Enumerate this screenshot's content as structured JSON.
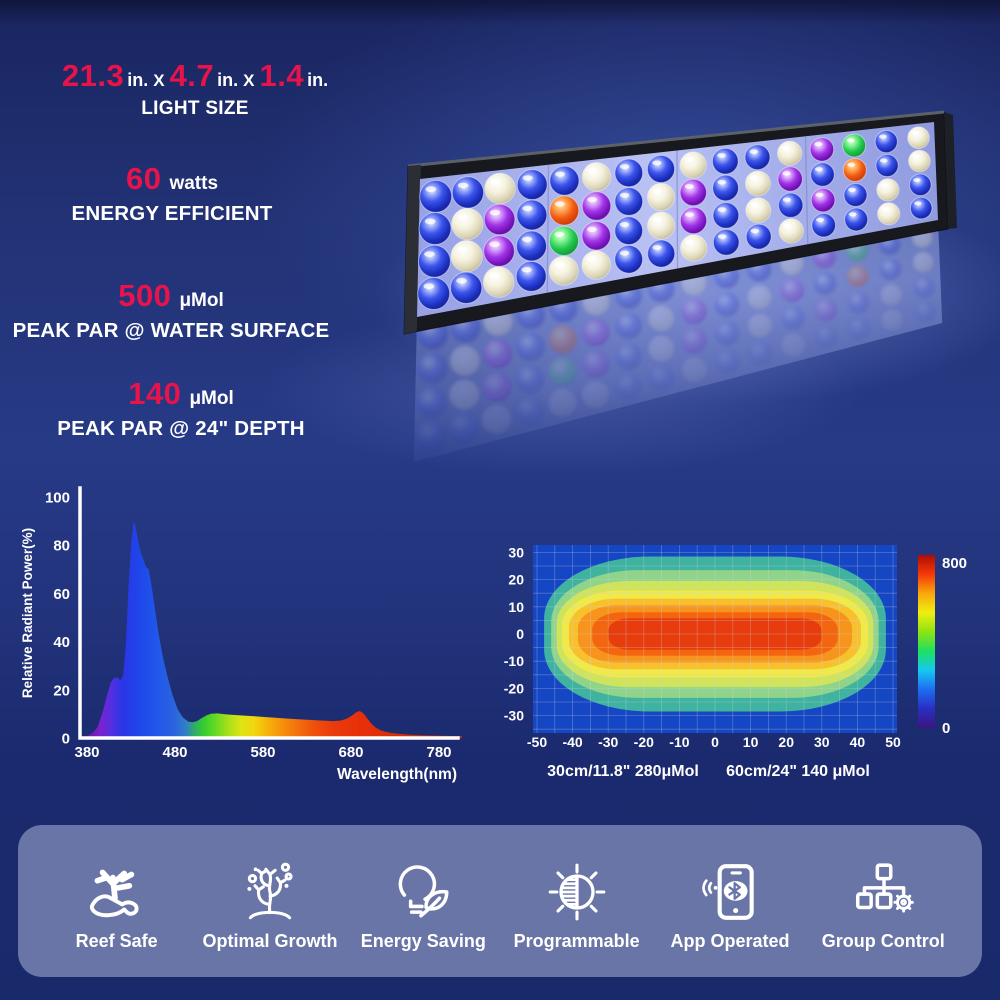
{
  "specs": {
    "size": {
      "values": [
        "21.3",
        "4.7",
        "1.4"
      ],
      "unit": "in.",
      "separator": "X",
      "caption": "LIGHT SIZE"
    },
    "power": {
      "value": "60",
      "unit": "watts",
      "caption": "ENERGY EFFICIENT"
    },
    "par_surface": {
      "value": "500",
      "unit": "μMol",
      "caption": "PEAK PAR @ WATER SURFACE"
    },
    "par_depth": {
      "value": "140",
      "unit": "μMol",
      "caption": "PEAK PAR @ 24\" DEPTH"
    }
  },
  "colors": {
    "accent_red": "#e8134b",
    "text": "#ffffff",
    "feature_panel": "#6a75a7",
    "background_blue": "#22337c",
    "heatmap_plot_blue": "#1546c4"
  },
  "chart_data": [
    {
      "id": "spectrum",
      "type": "area",
      "title": "",
      "xlabel": "Wavelength(nm)",
      "ylabel": "Relative Radiant Power(%)",
      "xlim": [
        365,
        806
      ],
      "ylim": [
        0,
        100
      ],
      "xticks": [
        380,
        480,
        580,
        680,
        780
      ],
      "yticks": [
        0,
        20,
        40,
        60,
        80,
        100
      ],
      "grid": false,
      "points": [
        [
          380,
          1
        ],
        [
          386,
          2
        ],
        [
          392,
          4.5
        ],
        [
          398,
          11
        ],
        [
          403,
          18
        ],
        [
          407,
          23
        ],
        [
          411,
          25
        ],
        [
          415,
          25
        ],
        [
          418,
          24
        ],
        [
          421,
          26
        ],
        [
          424,
          38
        ],
        [
          427,
          62
        ],
        [
          430,
          80
        ],
        [
          433,
          90
        ],
        [
          435,
          88
        ],
        [
          438,
          82
        ],
        [
          441,
          77
        ],
        [
          444,
          74
        ],
        [
          447,
          71
        ],
        [
          450,
          70
        ],
        [
          453,
          64
        ],
        [
          457,
          54
        ],
        [
          461,
          44
        ],
        [
          466,
          34
        ],
        [
          471,
          26
        ],
        [
          477,
          18
        ],
        [
          483,
          12
        ],
        [
          489,
          8.5
        ],
        [
          495,
          6.8
        ],
        [
          500,
          6.5
        ],
        [
          505,
          7
        ],
        [
          510,
          8.2
        ],
        [
          516,
          9.4
        ],
        [
          521,
          10.1
        ],
        [
          528,
          10.2
        ],
        [
          538,
          9.8
        ],
        [
          552,
          9.4
        ],
        [
          570,
          9
        ],
        [
          590,
          8.5
        ],
        [
          610,
          8
        ],
        [
          630,
          7.6
        ],
        [
          648,
          7.2
        ],
        [
          660,
          7
        ],
        [
          668,
          7.2
        ],
        [
          675,
          8
        ],
        [
          681,
          9.3
        ],
        [
          686,
          10.7
        ],
        [
          690,
          11.2
        ],
        [
          694,
          10.3
        ],
        [
          698,
          8.4
        ],
        [
          703,
          6
        ],
        [
          708,
          4.3
        ],
        [
          714,
          3.1
        ],
        [
          724,
          2.2
        ],
        [
          738,
          1.6
        ],
        [
          755,
          1.2
        ],
        [
          775,
          1
        ],
        [
          795,
          0.85
        ],
        [
          806,
          0.8
        ]
      ],
      "gradient_stops": [
        [
          380,
          "#6d14a4"
        ],
        [
          395,
          "#7a22cc"
        ],
        [
          408,
          "#5430e0"
        ],
        [
          420,
          "#2b35e6"
        ],
        [
          440,
          "#1f46ea"
        ],
        [
          460,
          "#2158ea"
        ],
        [
          478,
          "#2a62e0"
        ],
        [
          492,
          "#2f7fc8"
        ],
        [
          503,
          "#2fae62"
        ],
        [
          512,
          "#33cc33"
        ],
        [
          525,
          "#62d824"
        ],
        [
          540,
          "#a6e01a"
        ],
        [
          555,
          "#dde414"
        ],
        [
          570,
          "#f2d60f"
        ],
        [
          585,
          "#f6b30b"
        ],
        [
          600,
          "#f6930a"
        ],
        [
          618,
          "#f4720c"
        ],
        [
          638,
          "#ef500c"
        ],
        [
          660,
          "#ea3b0b"
        ],
        [
          690,
          "#e7300a"
        ],
        [
          730,
          "#d92c08"
        ],
        [
          806,
          "#c92806"
        ]
      ]
    },
    {
      "id": "par-distribution",
      "type": "heatmap",
      "xticks": [
        -50,
        -40,
        -30,
        -20,
        -10,
        0,
        10,
        20,
        30,
        40,
        50
      ],
      "yticks": [
        30,
        20,
        10,
        0,
        -10,
        -20,
        -30
      ],
      "grid": true,
      "grid_step": 5,
      "plot_bg": "#1546c4",
      "bands": [
        {
          "color": "#3fb3a0",
          "a": 48,
          "b": 28.5
        },
        {
          "color": "#8fd48a",
          "a": 46,
          "b": 23.5
        },
        {
          "color": "#cfe45c",
          "a": 44.5,
          "b": 19.5
        },
        {
          "color": "#f0e94a",
          "a": 43,
          "b": 16
        },
        {
          "color": "#f8c02c",
          "a": 41,
          "b": 13
        },
        {
          "color": "#f7941d",
          "a": 38.5,
          "b": 10.5
        },
        {
          "color": "#f3660f",
          "a": 34.5,
          "b": 8
        },
        {
          "color": "#e73c0c",
          "a": 30,
          "b": 5.8
        }
      ],
      "colorbar": {
        "min": 0,
        "max": 800,
        "max_label": "800",
        "min_label": "0",
        "stops": [
          "#3c1581",
          "#2a2dc0",
          "#1e6cf2",
          "#15c8f0",
          "#1fe060",
          "#8ee312",
          "#f0ee10",
          "#f9a70b",
          "#f43908",
          "#ad0d05"
        ]
      },
      "captions": [
        {
          "distance": "30cm/11.8\"",
          "par": "280μMol"
        },
        {
          "distance": "60cm/24\"",
          "par": "140 μMol"
        }
      ]
    }
  ],
  "product_visual": {
    "kind": "aquarium-led-light-bar-photo",
    "led_pattern": [
      "BBWBBWBBWBBWPGBW",
      "BWPBRPBWPBWPBRBW",
      "BWPBGPBWPBWBPBWB",
      "BBWBWWBBWBBWBBWB"
    ],
    "led_colors": {
      "B": "blue",
      "W": "white",
      "P": "purple",
      "R": "red",
      "G": "green"
    },
    "sections": 4
  },
  "features": [
    {
      "label": "Reef Safe",
      "icon": "hand-coral-icon"
    },
    {
      "label": "Optimal Growth",
      "icon": "coral-growth-icon"
    },
    {
      "label": "Energy Saving",
      "icon": "bulb-leaf-icon"
    },
    {
      "label": "Programmable",
      "icon": "dial-gear-icon"
    },
    {
      "label": "App Operated",
      "icon": "phone-bluetooth-icon"
    },
    {
      "label": "Group Control",
      "icon": "network-gear-icon"
    }
  ]
}
